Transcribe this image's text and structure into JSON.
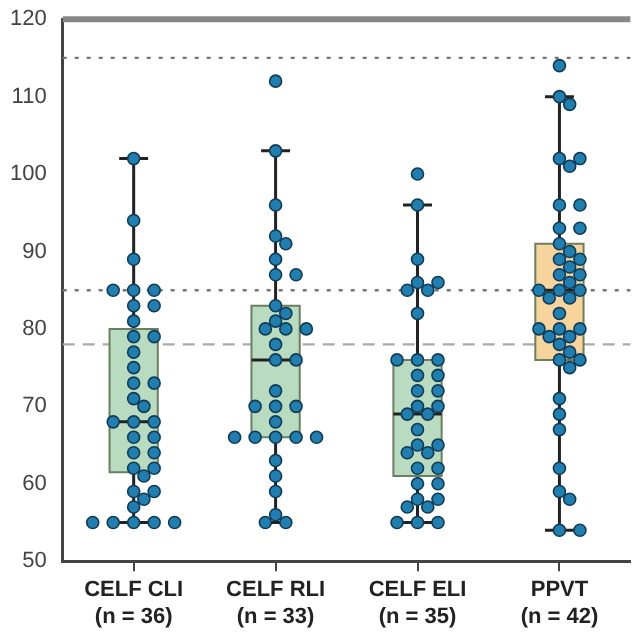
{
  "chart_data": {
    "type": "box",
    "categories": [
      "CELF CLI (n = 36)",
      "CELF RLI (n = 33)",
      "CELF ELI (n = 35)",
      "PPVT (n = 42)"
    ],
    "colors": [
      "#b9dcc0",
      "#b9dcc0",
      "#b9dcc0",
      "#f6d49c"
    ],
    "boxes": [
      {
        "low": 55,
        "q1": 61.5,
        "median": 68,
        "q3": 80,
        "high": 102
      },
      {
        "low": 55,
        "q1": 66,
        "median": 76,
        "q3": 83,
        "high": 103
      },
      {
        "low": 55,
        "q1": 61,
        "median": 69,
        "q3": 76,
        "high": 96
      },
      {
        "low": 54,
        "q1": 76,
        "median": 85,
        "q3": 91,
        "high": 110
      }
    ],
    "series": [
      {
        "type": "scatter",
        "color": "#1f7fb0",
        "x": [
          "CELF CLI (n = 36)",
          "CELF CLI (n = 36)",
          "CELF CLI (n = 36)",
          "CELF CLI (n = 36)",
          "CELF CLI (n = 36)",
          "CELF CLI (n = 36)",
          "CELF CLI (n = 36)",
          "CELF CLI (n = 36)",
          "CELF CLI (n = 36)",
          "CELF CLI (n = 36)",
          "CELF CLI (n = 36)",
          "CELF CLI (n = 36)",
          "CELF CLI (n = 36)",
          "CELF CLI (n = 36)",
          "CELF CLI (n = 36)",
          "CELF CLI (n = 36)",
          "CELF CLI (n = 36)",
          "CELF CLI (n = 36)",
          "CELF CLI (n = 36)",
          "CELF CLI (n = 36)",
          "CELF CLI (n = 36)",
          "CELF CLI (n = 36)",
          "CELF CLI (n = 36)",
          "CELF CLI (n = 36)",
          "CELF CLI (n = 36)",
          "CELF CLI (n = 36)",
          "CELF CLI (n = 36)",
          "CELF CLI (n = 36)",
          "CELF CLI (n = 36)",
          "CELF CLI (n = 36)",
          "CELF CLI (n = 36)",
          "CELF CLI (n = 36)",
          "CELF CLI (n = 36)",
          "CELF CLI (n = 36)",
          "CELF CLI (n = 36)",
          "CELF CLI (n = 36)"
        ],
        "values": [
          102,
          94,
          89,
          85,
          85,
          85,
          83,
          83,
          81,
          79,
          79,
          77,
          75,
          73,
          73,
          71,
          70,
          68,
          68,
          68,
          66,
          66,
          64,
          64,
          62,
          62,
          61,
          59,
          59,
          58,
          57,
          55,
          55,
          55,
          55,
          55
        ]
      },
      {
        "type": "scatter",
        "color": "#1f7fb0",
        "x": [
          "CELF RLI (n = 33)",
          "CELF RLI (n = 33)",
          "CELF RLI (n = 33)",
          "CELF RLI (n = 33)",
          "CELF RLI (n = 33)",
          "CELF RLI (n = 33)",
          "CELF RLI (n = 33)",
          "CELF RLI (n = 33)",
          "CELF RLI (n = 33)",
          "CELF RLI (n = 33)",
          "CELF RLI (n = 33)",
          "CELF RLI (n = 33)",
          "CELF RLI (n = 33)",
          "CELF RLI (n = 33)",
          "CELF RLI (n = 33)",
          "CELF RLI (n = 33)",
          "CELF RLI (n = 33)",
          "CELF RLI (n = 33)",
          "CELF RLI (n = 33)",
          "CELF RLI (n = 33)",
          "CELF RLI (n = 33)",
          "CELF RLI (n = 33)",
          "CELF RLI (n = 33)",
          "CELF RLI (n = 33)",
          "CELF RLI (n = 33)",
          "CELF RLI (n = 33)",
          "CELF RLI (n = 33)",
          "CELF RLI (n = 33)",
          "CELF RLI (n = 33)",
          "CELF RLI (n = 33)",
          "CELF RLI (n = 33)",
          "CELF RLI (n = 33)",
          "CELF RLI (n = 33)"
        ],
        "values": [
          112,
          103,
          96,
          92,
          91,
          89,
          87,
          87,
          83,
          82,
          81,
          80,
          80,
          80,
          78,
          76,
          76,
          72,
          70,
          70,
          70,
          68,
          66,
          66,
          66,
          66,
          66,
          63,
          61,
          59,
          56,
          55,
          55
        ]
      },
      {
        "type": "scatter",
        "color": "#1f7fb0",
        "x": [
          "CELF ELI (n = 35)",
          "CELF ELI (n = 35)",
          "CELF ELI (n = 35)",
          "CELF ELI (n = 35)",
          "CELF ELI (n = 35)",
          "CELF ELI (n = 35)",
          "CELF ELI (n = 35)",
          "CELF ELI (n = 35)",
          "CELF ELI (n = 35)",
          "CELF ELI (n = 35)",
          "CELF ELI (n = 35)",
          "CELF ELI (n = 35)",
          "CELF ELI (n = 35)",
          "CELF ELI (n = 35)",
          "CELF ELI (n = 35)",
          "CELF ELI (n = 35)",
          "CELF ELI (n = 35)",
          "CELF ELI (n = 35)",
          "CELF ELI (n = 35)",
          "CELF ELI (n = 35)",
          "CELF ELI (n = 35)",
          "CELF ELI (n = 35)",
          "CELF ELI (n = 35)",
          "CELF ELI (n = 35)",
          "CELF ELI (n = 35)",
          "CELF ELI (n = 35)",
          "CELF ELI (n = 35)",
          "CELF ELI (n = 35)",
          "CELF ELI (n = 35)",
          "CELF ELI (n = 35)",
          "CELF ELI (n = 35)",
          "CELF ELI (n = 35)",
          "CELF ELI (n = 35)",
          "CELF ELI (n = 35)",
          "CELF ELI (n = 35)"
        ],
        "values": [
          100,
          96,
          89,
          86,
          86,
          85,
          85,
          82,
          76,
          76,
          76,
          74,
          74,
          72,
          72,
          70,
          70,
          69,
          69,
          67,
          65,
          65,
          64,
          64,
          62,
          62,
          60,
          60,
          58,
          58,
          57,
          57,
          55,
          55,
          55
        ]
      },
      {
        "type": "scatter",
        "color": "#1f7fb0",
        "x": [
          "PPVT (n = 42)",
          "PPVT (n = 42)",
          "PPVT (n = 42)",
          "PPVT (n = 42)",
          "PPVT (n = 42)",
          "PPVT (n = 42)",
          "PPVT (n = 42)",
          "PPVT (n = 42)",
          "PPVT (n = 42)",
          "PPVT (n = 42)",
          "PPVT (n = 42)",
          "PPVT (n = 42)",
          "PPVT (n = 42)",
          "PPVT (n = 42)",
          "PPVT (n = 42)",
          "PPVT (n = 42)",
          "PPVT (n = 42)",
          "PPVT (n = 42)",
          "PPVT (n = 42)",
          "PPVT (n = 42)",
          "PPVT (n = 42)",
          "PPVT (n = 42)",
          "PPVT (n = 42)",
          "PPVT (n = 42)",
          "PPVT (n = 42)",
          "PPVT (n = 42)",
          "PPVT (n = 42)",
          "PPVT (n = 42)",
          "PPVT (n = 42)",
          "PPVT (n = 42)",
          "PPVT (n = 42)",
          "PPVT (n = 42)",
          "PPVT (n = 42)",
          "PPVT (n = 42)",
          "PPVT (n = 42)",
          "PPVT (n = 42)",
          "PPVT (n = 42)",
          "PPVT (n = 42)",
          "PPVT (n = 42)",
          "PPVT (n = 42)",
          "PPVT (n = 42)",
          "PPVT (n = 42)"
        ],
        "values": [
          114,
          110,
          109,
          102,
          102,
          101,
          96,
          96,
          93,
          93,
          91,
          90,
          89,
          89,
          87,
          86,
          85,
          85,
          85,
          84,
          84,
          82,
          80,
          80,
          80,
          79,
          79,
          78,
          77,
          76,
          76,
          75,
          71,
          69,
          67,
          62,
          59,
          58,
          54,
          54,
          87,
          88
        ]
      }
    ],
    "ylim": [
      50,
      120
    ],
    "yticks": [
      50,
      60,
      70,
      80,
      90,
      100,
      110,
      120
    ],
    "grid": false,
    "legend": false,
    "marker": "circle",
    "ref_lines": [
      {
        "axis": "y",
        "value": 115,
        "color": "#777777",
        "line_style": "dotted"
      },
      {
        "axis": "y",
        "value": 85,
        "color": "#777777",
        "line_style": "dotted"
      },
      {
        "axis": "y",
        "value": 78,
        "color": "#aaaaaa",
        "line_style": "dashed"
      }
    ]
  }
}
